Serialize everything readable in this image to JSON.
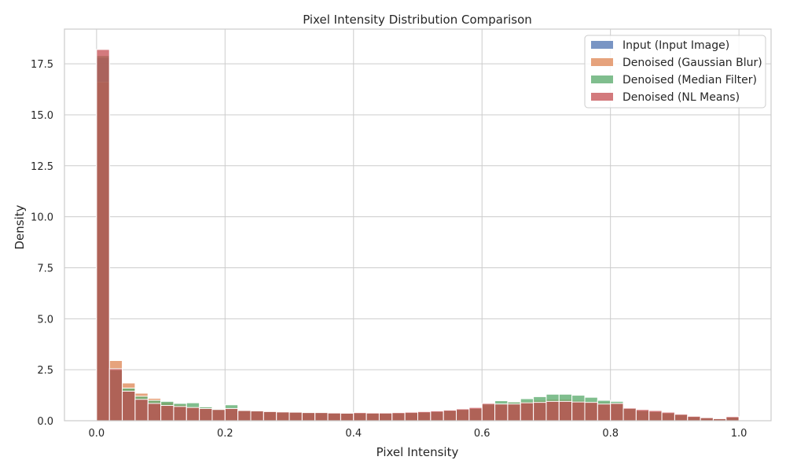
{
  "chart_data": {
    "type": "bar",
    "title": "Pixel Intensity Distribution Comparison",
    "xlabel": "Pixel Intensity",
    "ylabel": "Density",
    "xlim": [
      -0.05,
      1.05
    ],
    "ylim": [
      0,
      19.2
    ],
    "xticks": [
      "0.0",
      "0.2",
      "0.4",
      "0.6",
      "0.8",
      "1.0"
    ],
    "yticks": [
      "0.0",
      "2.5",
      "5.0",
      "7.5",
      "10.0",
      "12.5",
      "15.0",
      "17.5"
    ],
    "grid": true,
    "legend_position": "top-right",
    "bin_width": 0.02,
    "bin_starts": [
      0.0,
      0.02,
      0.04,
      0.06,
      0.08,
      0.1,
      0.12,
      0.14,
      0.16,
      0.18,
      0.2,
      0.22,
      0.24,
      0.26,
      0.28,
      0.3,
      0.32,
      0.34,
      0.36,
      0.38,
      0.4,
      0.42,
      0.44,
      0.46,
      0.48,
      0.5,
      0.52,
      0.54,
      0.56,
      0.58,
      0.6,
      0.62,
      0.64,
      0.66,
      0.68,
      0.7,
      0.72,
      0.74,
      0.76,
      0.78,
      0.8,
      0.82,
      0.84,
      0.86,
      0.88,
      0.9,
      0.92,
      0.94,
      0.96,
      0.98
    ],
    "series": [
      {
        "name": "Input (Input Image)",
        "color": "#4c72b0",
        "values": [
          17.8,
          2.6,
          1.5,
          1.1,
          0.9,
          0.8,
          0.7,
          0.65,
          0.6,
          0.55,
          0.55,
          0.5,
          0.48,
          0.45,
          0.43,
          0.42,
          0.4,
          0.4,
          0.38,
          0.37,
          0.38,
          0.37,
          0.37,
          0.38,
          0.4,
          0.42,
          0.45,
          0.5,
          0.55,
          0.6,
          0.75,
          0.8,
          0.85,
          0.9,
          0.95,
          1.0,
          1.0,
          0.98,
          0.95,
          0.9,
          0.8,
          0.6,
          0.5,
          0.45,
          0.38,
          0.3,
          0.2,
          0.15,
          0.12,
          0.18
        ]
      },
      {
        "name": "Denoised (Gaussian Blur)",
        "color": "#dd8452",
        "values": [
          16.6,
          2.95,
          1.85,
          1.35,
          1.1,
          0.9,
          0.8,
          0.7,
          0.65,
          0.6,
          0.58,
          0.52,
          0.5,
          0.46,
          0.44,
          0.42,
          0.4,
          0.4,
          0.38,
          0.37,
          0.38,
          0.37,
          0.37,
          0.38,
          0.4,
          0.42,
          0.45,
          0.5,
          0.56,
          0.62,
          0.78,
          0.84,
          0.9,
          0.95,
          1.0,
          1.05,
          1.05,
          1.0,
          0.95,
          0.9,
          0.82,
          0.6,
          0.5,
          0.45,
          0.38,
          0.3,
          0.2,
          0.15,
          0.12,
          0.18
        ]
      },
      {
        "name": "Denoised (Median Filter)",
        "color": "#55a868",
        "values": [
          17.9,
          2.5,
          1.6,
          1.2,
          1.0,
          0.95,
          0.85,
          0.88,
          0.68,
          0.58,
          0.78,
          0.5,
          0.48,
          0.45,
          0.43,
          0.42,
          0.4,
          0.4,
          0.38,
          0.37,
          0.38,
          0.37,
          0.37,
          0.38,
          0.4,
          0.42,
          0.45,
          0.5,
          0.55,
          0.6,
          0.82,
          0.98,
          0.92,
          1.08,
          1.18,
          1.3,
          1.3,
          1.25,
          1.15,
          1.0,
          0.95,
          0.6,
          0.5,
          0.45,
          0.38,
          0.3,
          0.2,
          0.15,
          0.12,
          0.18
        ]
      },
      {
        "name": "Denoised (NL Means)",
        "color": "#c44e52",
        "values": [
          18.2,
          2.55,
          1.45,
          1.05,
          0.85,
          0.75,
          0.7,
          0.65,
          0.6,
          0.55,
          0.6,
          0.5,
          0.48,
          0.45,
          0.43,
          0.42,
          0.4,
          0.4,
          0.38,
          0.37,
          0.4,
          0.38,
          0.38,
          0.4,
          0.42,
          0.45,
          0.48,
          0.52,
          0.58,
          0.65,
          0.85,
          0.82,
          0.82,
          0.88,
          0.9,
          0.95,
          0.95,
          0.92,
          0.9,
          0.82,
          0.85,
          0.62,
          0.55,
          0.5,
          0.42,
          0.32,
          0.22,
          0.15,
          0.1,
          0.2
        ]
      }
    ]
  }
}
